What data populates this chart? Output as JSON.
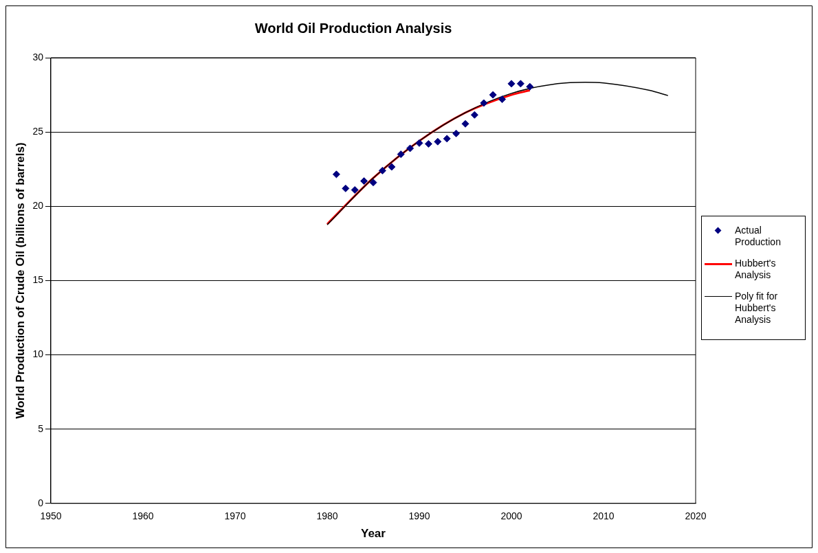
{
  "chart_data": {
    "type": "scatter",
    "title": "World Oil Production Analysis",
    "xlabel": "Year",
    "ylabel": "World Production of Crude Oil (billions of barrels)",
    "xlim": [
      1950,
      2020
    ],
    "xticks": [
      1950,
      1960,
      1970,
      1980,
      1990,
      2000,
      2010,
      2020
    ],
    "ylim": [
      0,
      30
    ],
    "yticks": [
      0,
      5,
      10,
      15,
      20,
      25,
      30
    ],
    "grid": "y",
    "legend": "right",
    "series": [
      {
        "name": "Actual Production",
        "type": "scatter",
        "marker": "diamond",
        "color": "#000080",
        "x": [
          1981,
          1982,
          1983,
          1984,
          1985,
          1986,
          1987,
          1988,
          1989,
          1990,
          1991,
          1992,
          1993,
          1994,
          1995,
          1996,
          1997,
          1998,
          1999,
          2000,
          2001,
          2002
        ],
        "values": [
          22.15,
          21.2,
          21.1,
          21.7,
          21.6,
          22.4,
          22.65,
          23.5,
          23.9,
          24.25,
          24.2,
          24.35,
          24.55,
          24.9,
          25.55,
          26.15,
          26.95,
          27.5,
          27.2,
          28.25,
          28.25,
          28.05
        ]
      },
      {
        "name": "Hubbert's Analysis",
        "type": "line",
        "marker": "none",
        "color": "#ff0000",
        "x": [
          1980,
          1985,
          1990,
          1995,
          2000,
          2002
        ],
        "values": [
          18.8,
          21.9,
          24.4,
          26.3,
          27.5,
          27.8
        ]
      },
      {
        "name": "Poly fit for Hubbert's Analysis",
        "type": "line",
        "marker": "none",
        "color": "#000000",
        "x": [
          1980,
          1985,
          1990,
          1995,
          2000,
          2005,
          2008,
          2010,
          2015,
          2017
        ],
        "values": [
          18.75,
          21.9,
          24.4,
          26.3,
          27.6,
          28.25,
          28.35,
          28.3,
          27.8,
          27.45
        ]
      }
    ]
  }
}
